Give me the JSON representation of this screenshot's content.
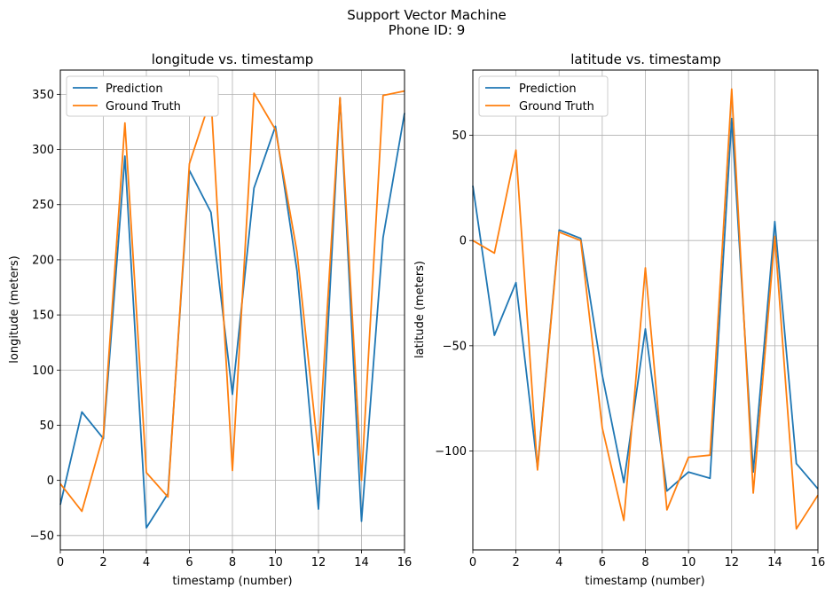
{
  "suptitle": [
    "Support Vector Machine",
    "Phone ID: 9"
  ],
  "colors": {
    "prediction": "#1f77b4",
    "ground_truth": "#ff7f0e",
    "grid": "#b0b0b0"
  },
  "chart_data": [
    {
      "type": "line",
      "title": "longitude vs. timestamp",
      "xlabel": "timestamp (number)",
      "ylabel": "longitude (meters)",
      "xlim": [
        0,
        16
      ],
      "ylim": [
        -63,
        372
      ],
      "xticks": [
        0,
        2,
        4,
        6,
        8,
        10,
        12,
        14,
        16
      ],
      "yticks": [
        -50,
        0,
        50,
        100,
        150,
        200,
        250,
        300,
        350
      ],
      "grid": true,
      "legend": "top-left",
      "x": [
        0,
        1,
        2,
        3,
        4,
        5,
        6,
        7,
        8,
        9,
        10,
        11,
        12,
        13,
        14,
        15,
        16
      ],
      "series": [
        {
          "name": "Prediction",
          "values": [
            -22,
            62,
            38,
            294,
            -43,
            -12,
            281,
            243,
            78,
            265,
            321,
            190,
            -26,
            347,
            -37,
            220,
            333
          ]
        },
        {
          "name": "Ground Truth",
          "values": [
            -3,
            -28,
            41,
            324,
            7,
            -15,
            287,
            347,
            9,
            351,
            318,
            207,
            23,
            347,
            0,
            349,
            353
          ]
        }
      ]
    },
    {
      "type": "line",
      "title": "latitude vs. timestamp",
      "xlabel": "timestamp (number)",
      "ylabel": "latitude (meters)",
      "xlim": [
        0,
        16
      ],
      "ylim": [
        -147,
        81
      ],
      "xticks": [
        0,
        2,
        4,
        6,
        8,
        10,
        12,
        14,
        16
      ],
      "yticks": [
        -100,
        -50,
        0,
        50
      ],
      "grid": true,
      "legend": "top-left",
      "x": [
        0,
        1,
        2,
        3,
        4,
        5,
        6,
        7,
        8,
        9,
        10,
        11,
        12,
        13,
        14,
        15,
        16
      ],
      "series": [
        {
          "name": "Prediction",
          "values": [
            26,
            -45,
            -20,
            -108,
            5,
            1,
            -64,
            -115,
            -42,
            -119,
            -110,
            -113,
            58,
            -110,
            9,
            -106,
            -118
          ]
        },
        {
          "name": "Ground Truth",
          "values": [
            0,
            -6,
            43,
            -109,
            4,
            0,
            -89,
            -133,
            -13,
            -128,
            -103,
            -102,
            72,
            -120,
            2,
            -137,
            -121
          ]
        }
      ]
    }
  ]
}
